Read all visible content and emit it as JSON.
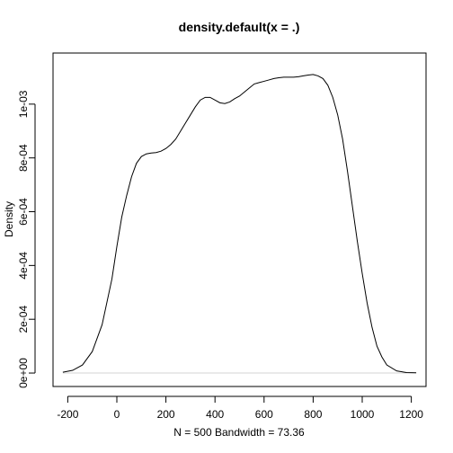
{
  "chart_data": {
    "type": "line",
    "title": "density.default(x = .)",
    "xlabel": "N = 500   Bandwidth = 73.36",
    "ylabel": "Density",
    "xlim": [
      -260,
      1260
    ],
    "ylim": [
      -5e-05,
      0.00119
    ],
    "grid": false,
    "legend": "none",
    "x_ticks": [
      {
        "value": -200,
        "label": "-200"
      },
      {
        "value": 0,
        "label": "0"
      },
      {
        "value": 200,
        "label": "200"
      },
      {
        "value": 400,
        "label": "400"
      },
      {
        "value": 600,
        "label": "600"
      },
      {
        "value": 800,
        "label": "800"
      },
      {
        "value": 1000,
        "label": "1000"
      },
      {
        "value": 1200,
        "label": "1200"
      }
    ],
    "y_ticks": [
      {
        "value": 0,
        "label": "0e+00"
      },
      {
        "value": 0.0002,
        "label": "2e-04"
      },
      {
        "value": 0.0004,
        "label": "4e-04"
      },
      {
        "value": 0.0006,
        "label": "6e-04"
      },
      {
        "value": 0.0008,
        "label": "8e-04"
      },
      {
        "value": 0.001,
        "label": "1e-03"
      }
    ],
    "zero_line": true,
    "series": [
      {
        "color": "#000000",
        "x": [
          -220,
          -180,
          -140,
          -100,
          -60,
          -20,
          0,
          20,
          40,
          60,
          80,
          100,
          120,
          140,
          160,
          180,
          200,
          220,
          240,
          260,
          280,
          300,
          320,
          340,
          360,
          380,
          400,
          420,
          440,
          460,
          480,
          500,
          520,
          540,
          560,
          580,
          600,
          620,
          640,
          660,
          680,
          700,
          720,
          740,
          760,
          780,
          800,
          820,
          840,
          860,
          880,
          900,
          920,
          940,
          960,
          980,
          1000,
          1020,
          1040,
          1060,
          1080,
          1100,
          1140,
          1180,
          1220
        ],
        "y": [
          3e-06,
          1e-05,
          3e-05,
          8e-05,
          0.00018,
          0.00035,
          0.00047,
          0.00058,
          0.00066,
          0.00073,
          0.00078,
          0.000805,
          0.000815,
          0.000818,
          0.00082,
          0.000825,
          0.000835,
          0.00085,
          0.00087,
          0.0009,
          0.00093,
          0.00096,
          0.00099,
          0.001015,
          0.001025,
          0.001025,
          0.001015,
          0.001005,
          0.001002,
          0.001008,
          0.00102,
          0.00103,
          0.001045,
          0.00106,
          0.001075,
          0.00108,
          0.001085,
          0.00109,
          0.001095,
          0.001098,
          0.0011,
          0.0011,
          0.0011,
          0.001102,
          0.001105,
          0.001108,
          0.00111,
          0.001105,
          0.001095,
          0.00107,
          0.001025,
          0.00096,
          0.00087,
          0.00075,
          0.00062,
          0.00049,
          0.00037,
          0.00026,
          0.00017,
          0.0001,
          6e-05,
          3e-05,
          8e-06,
          2e-06,
          1e-06
        ]
      }
    ]
  }
}
